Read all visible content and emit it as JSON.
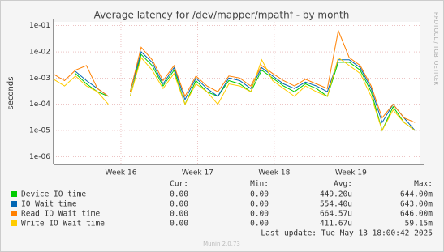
{
  "chart_data": {
    "type": "line",
    "title": "Average latency for /dev/mapper/mpathf - by month",
    "y_label": "seconds",
    "side_label": "RRDTOOL / TOBI OETIKER",
    "log_scale": true,
    "grid": true,
    "x": [
      0,
      1,
      2,
      3,
      4,
      5,
      6,
      7,
      8,
      9,
      10,
      11,
      12,
      13,
      14,
      15,
      16,
      17,
      18,
      19,
      20,
      21,
      22,
      23,
      24,
      25,
      26,
      27,
      28,
      29,
      30,
      31,
      32,
      33
    ],
    "xlim": [
      0,
      33.5
    ],
    "xticks": [
      {
        "value": 6.15,
        "label": "Week 16"
      },
      {
        "value": 13.15,
        "label": "Week 17"
      },
      {
        "value": 20.15,
        "label": "Week 18"
      },
      {
        "value": 27.15,
        "label": "Week 19"
      }
    ],
    "ylim": [
      5e-07,
      0.14
    ],
    "yticks": [
      {
        "value": 1e-06,
        "label": "1e-06"
      },
      {
        "value": 1e-05,
        "label": "1e-05"
      },
      {
        "value": 0.0001,
        "label": "1e-04"
      },
      {
        "value": 0.001,
        "label": "1e-03"
      },
      {
        "value": 0.01,
        "label": "1e-02"
      },
      {
        "value": 0.1,
        "label": "1e-01"
      }
    ],
    "legend_headers": [
      "Cur:",
      "Min:",
      "Avg:",
      "Max:"
    ],
    "series": [
      {
        "name": "Device IO time",
        "color": "#00cc00",
        "cur": "0.00",
        "min": "0.00",
        "avg": "449.20u",
        "max": "644.00m",
        "values": [
          0.001,
          null,
          0.0015,
          0.0006,
          0.0003,
          0.0002,
          null,
          0.0002,
          0.008,
          0.003,
          0.0005,
          0.002,
          0.0001,
          0.0008,
          0.0003,
          0.0002,
          0.0008,
          0.0006,
          0.0003,
          0.002,
          0.001,
          0.0005,
          0.0003,
          0.0006,
          0.0004,
          0.0002,
          0.004,
          0.004,
          0.002,
          0.0003,
          1e-05,
          8e-05,
          2e-05,
          1e-05
        ]
      },
      {
        "name": "IO Wait time",
        "color": "#0066b3",
        "cur": "0.00",
        "min": "0.00",
        "avg": "554.40u",
        "max": "643.00m",
        "values": [
          0.0012,
          null,
          0.0018,
          0.0008,
          0.0004,
          0.0002,
          null,
          0.0003,
          0.01,
          0.004,
          0.0006,
          0.0025,
          0.00015,
          0.001,
          0.0004,
          0.0002,
          0.001,
          0.0008,
          0.0004,
          0.0025,
          0.0012,
          0.0006,
          0.0004,
          0.0007,
          0.0005,
          0.0003,
          0.005,
          0.005,
          0.0025,
          0.0004,
          2e-05,
          0.0001,
          3e-05,
          1e-05
        ]
      },
      {
        "name": "Read IO Wait time",
        "color": "#ff8000",
        "cur": "0.00",
        "min": "0.00",
        "avg": "664.57u",
        "max": "646.00m",
        "values": [
          0.0014,
          0.0008,
          0.002,
          0.003,
          0.0004,
          0.0002,
          null,
          0.0003,
          0.015,
          0.005,
          0.0008,
          0.003,
          0.0002,
          0.0012,
          0.0005,
          0.0003,
          0.0012,
          0.001,
          0.0005,
          0.003,
          0.0015,
          0.0008,
          0.0005,
          0.0009,
          0.0006,
          0.0004,
          0.065,
          0.006,
          0.003,
          0.0005,
          3e-05,
          0.0001,
          3e-05,
          2e-05
        ]
      },
      {
        "name": "Write IO Wait time",
        "color": "#ffcc00",
        "cur": "0.00",
        "min": "0.00",
        "avg": "411.67u",
        "max": "59.15m",
        "values": [
          0.0009,
          0.0005,
          0.0012,
          0.0005,
          0.0003,
          0.0001,
          null,
          0.0002,
          0.006,
          0.002,
          0.0004,
          0.0015,
          0.0001,
          0.0006,
          0.0003,
          0.0001,
          0.0006,
          0.0005,
          0.0003,
          0.005,
          0.0008,
          0.0004,
          0.0002,
          0.0005,
          0.0003,
          0.0002,
          0.006,
          0.003,
          0.0015,
          0.0002,
          1e-05,
          6e-05,
          2e-05,
          1e-05
        ]
      }
    ],
    "last_update": "Last update: Tue May 13 18:00:42 2025",
    "footer": "Munin 2.0.73"
  }
}
